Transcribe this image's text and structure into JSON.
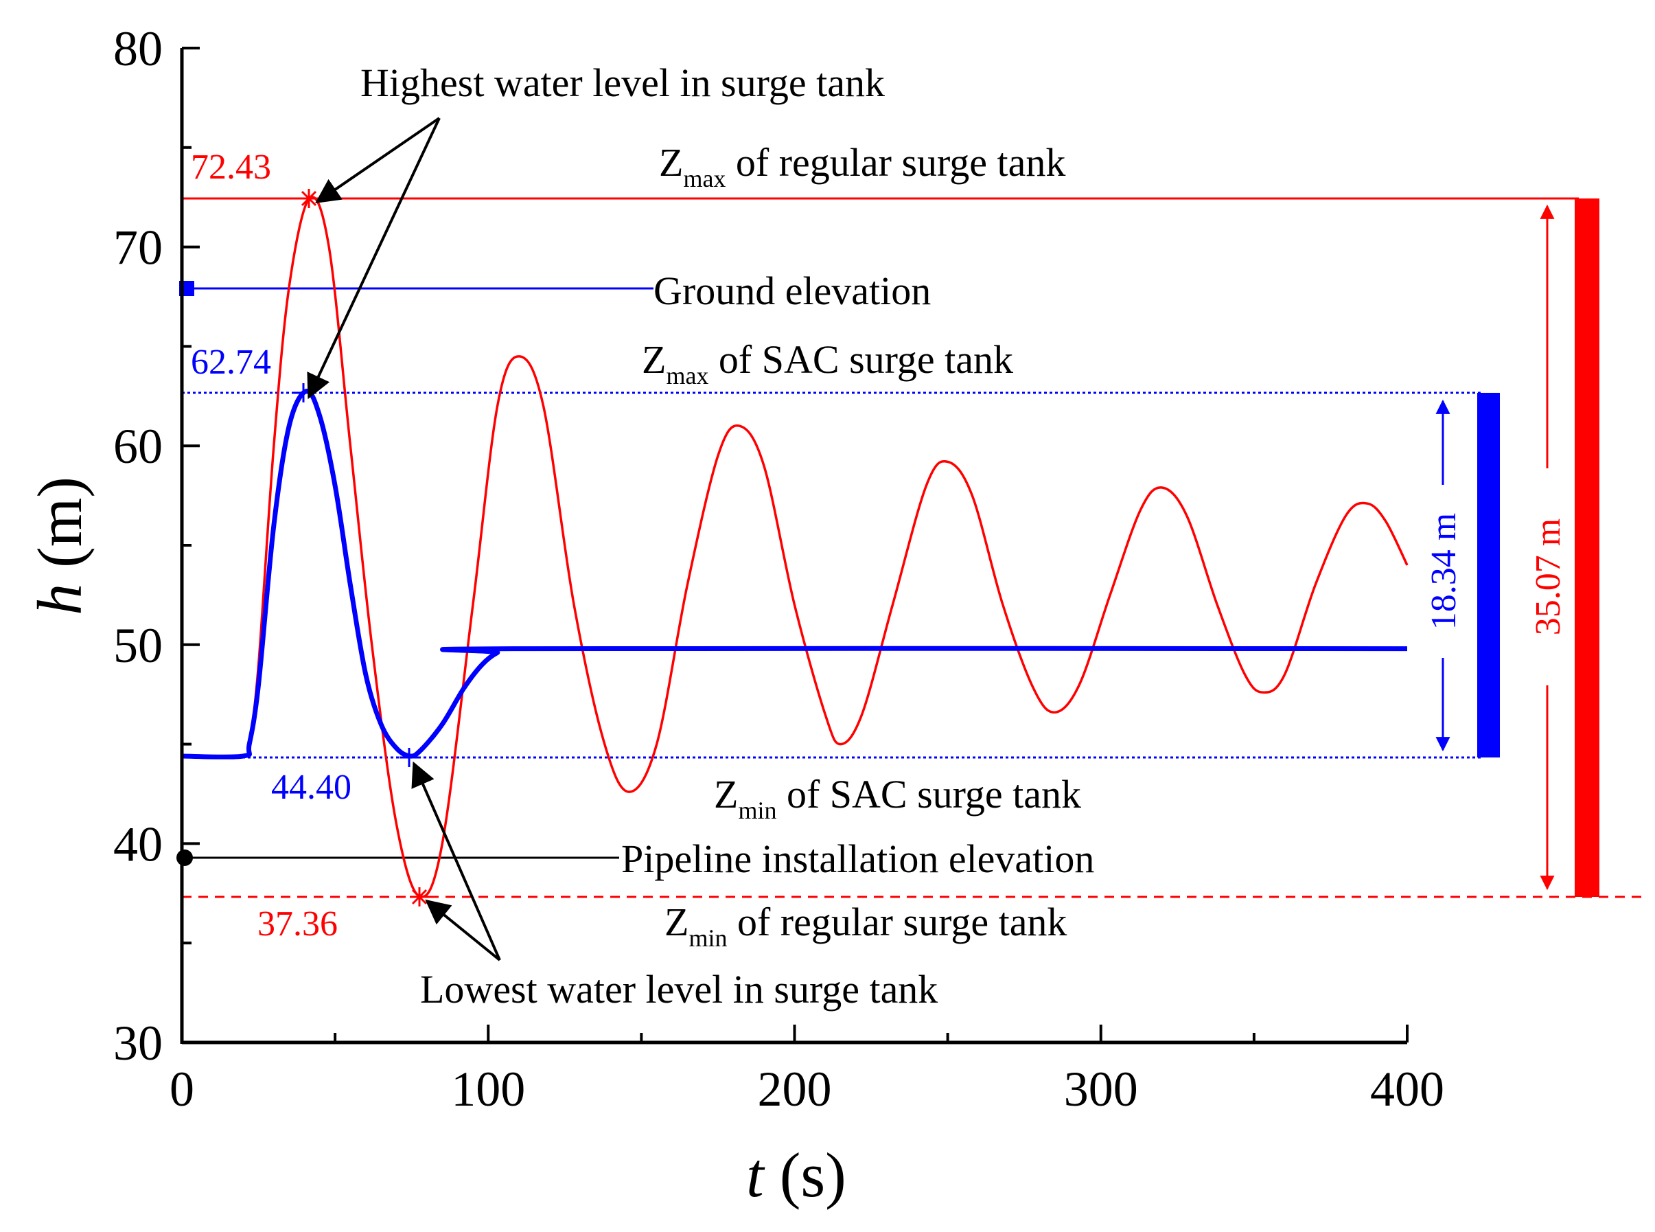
{
  "chart_data": {
    "type": "line",
    "xlabel": "t",
    "xlabel_unit": "(s)",
    "ylabel": "h",
    "ylabel_unit": "(m)",
    "xlim": [
      0,
      400
    ],
    "ylim": [
      30,
      80
    ],
    "x_ticks": [
      0,
      100,
      200,
      300,
      400
    ],
    "x_ticks_minor": [
      50,
      150,
      250,
      350
    ],
    "y_ticks": [
      30,
      40,
      50,
      60,
      70,
      80
    ],
    "y_ticks_minor": [
      35,
      45,
      55,
      65,
      75
    ],
    "colors": {
      "regular": "#ff0000",
      "sac": "#0000ff",
      "ground": "#0000ff",
      "pipeline": "#000000"
    },
    "series": [
      {
        "name": "Regular surge tank",
        "color": "#ff0000",
        "points": [
          [
            0,
            44.4
          ],
          [
            20,
            44.4
          ],
          [
            22,
            45.0
          ],
          [
            25,
            49.0
          ],
          [
            30,
            60.0
          ],
          [
            35,
            68.0
          ],
          [
            41.6,
            72.43
          ],
          [
            48,
            70.0
          ],
          [
            55,
            60.0
          ],
          [
            62,
            50.0
          ],
          [
            70,
            41.0
          ],
          [
            77.5,
            37.36
          ],
          [
            85,
            40.0
          ],
          [
            95,
            52.0
          ],
          [
            103,
            62.0
          ],
          [
            110,
            64.5
          ],
          [
            118,
            62.0
          ],
          [
            128,
            52.0
          ],
          [
            138,
            45.0
          ],
          [
            146,
            42.6
          ],
          [
            155,
            45.0
          ],
          [
            165,
            53.0
          ],
          [
            175,
            59.5
          ],
          [
            182,
            61.0
          ],
          [
            190,
            59.0
          ],
          [
            200,
            52.0
          ],
          [
            210,
            46.5
          ],
          [
            215,
            45.0
          ],
          [
            222,
            46.5
          ],
          [
            232,
            52.0
          ],
          [
            243,
            58.0
          ],
          [
            250,
            59.2
          ],
          [
            258,
            57.5
          ],
          [
            268,
            52.0
          ],
          [
            278,
            47.8
          ],
          [
            285,
            46.6
          ],
          [
            293,
            48.0
          ],
          [
            303,
            52.5
          ],
          [
            313,
            56.8
          ],
          [
            320,
            57.9
          ],
          [
            328,
            56.5
          ],
          [
            338,
            52.0
          ],
          [
            347,
            48.5
          ],
          [
            353,
            47.6
          ],
          [
            360,
            48.5
          ],
          [
            370,
            53.0
          ],
          [
            380,
            56.5
          ],
          [
            387,
            57.1
          ],
          [
            393,
            56.2
          ],
          [
            400,
            54.0
          ]
        ]
      },
      {
        "name": "SAC surge tank",
        "color": "#0000ff",
        "points": [
          [
            0,
            44.4
          ],
          [
            20,
            44.4
          ],
          [
            22,
            45.0
          ],
          [
            25,
            48.0
          ],
          [
            30,
            56.0
          ],
          [
            35,
            61.0
          ],
          [
            40.5,
            62.74
          ],
          [
            45,
            61.5
          ],
          [
            50,
            58.0
          ],
          [
            55,
            53.0
          ],
          [
            60,
            48.5
          ],
          [
            65,
            46.0
          ],
          [
            70,
            44.8
          ],
          [
            74.5,
            44.4
          ],
          [
            78,
            44.7
          ],
          [
            85,
            46.0
          ],
          [
            92,
            47.8
          ],
          [
            98,
            49.0
          ],
          [
            103,
            49.6
          ],
          [
            108,
            49.8
          ],
          [
            400,
            49.8
          ]
        ]
      }
    ],
    "reference_lines": [
      {
        "name": "Zmax of regular surge tank",
        "value": 72.43,
        "style": "solid",
        "color": "#ff0000"
      },
      {
        "name": "Zmin of regular surge tank",
        "value": 37.36,
        "style": "dashed",
        "color": "#ff0000"
      },
      {
        "name": "Zmax of SAC surge tank",
        "value": 62.74,
        "style": "dotted",
        "color": "#0000ff"
      },
      {
        "name": "Zmin of SAC surge tank",
        "value": 44.4,
        "style": "dotted",
        "color": "#0000ff"
      },
      {
        "name": "Ground elevation",
        "value": 68.0,
        "color": "#0000ff",
        "x_end": 155
      },
      {
        "name": "Pipeline installation elevation",
        "value": 39.3,
        "color": "#000000",
        "x_end": 142
      }
    ],
    "ranges": [
      {
        "label": "18.34 m",
        "from": 44.4,
        "to": 62.74,
        "color": "#0000ff"
      },
      {
        "label": "35.07 m",
        "from": 37.36,
        "to": 72.43,
        "color": "#ff0000"
      }
    ]
  },
  "labels": {
    "highest": "Highest water level in surge tank",
    "lowest": "Lowest water level in surge tank",
    "ground": "Ground elevation",
    "pipeline": "Pipeline installation elevation",
    "z_letter": "Z",
    "sub_max": "max",
    "sub_min": "min",
    "regular_suffix": " of regular surge tank",
    "sac_suffix": " of SAC surge tank",
    "val_72": "72.43",
    "val_62": "62.74",
    "val_44": "44.40",
    "val_37": "37.36",
    "range_sac": "18.34 m",
    "range_regular": "35.07 m"
  }
}
